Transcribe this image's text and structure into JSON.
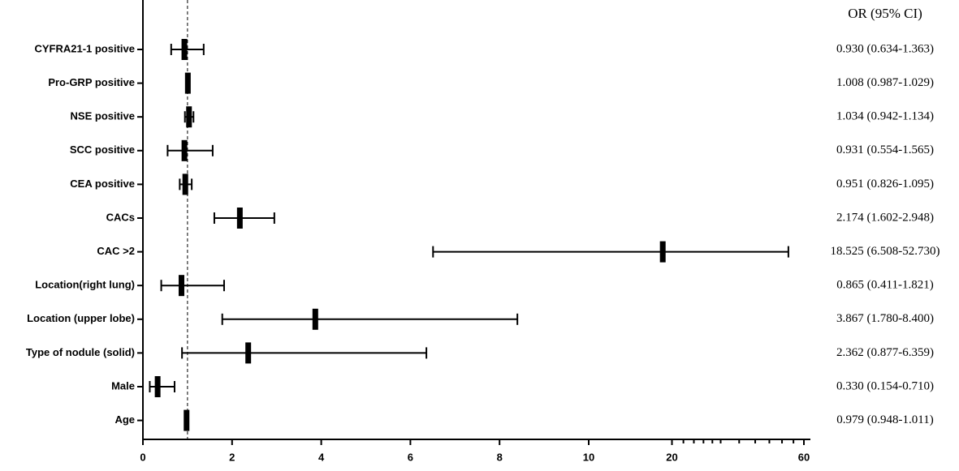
{
  "chart_data": {
    "type": "forest",
    "column_header": "OR (95% CI)",
    "categories": [
      "CYFRA21-1 positive",
      "Pro-GRP positive",
      "NSE positive",
      "SCC positive",
      "CEA positive",
      "CACs",
      "CAC >2",
      "Location(right lung)",
      "Location (upper lobe)",
      "Type of nodule (solid)",
      "Male",
      "Age"
    ],
    "values": [
      0.93,
      1.008,
      1.034,
      0.931,
      0.951,
      2.174,
      18.525,
      0.865,
      3.867,
      2.362,
      0.33,
      0.979
    ],
    "lower": [
      0.634,
      0.987,
      0.942,
      0.554,
      0.826,
      1.602,
      6.508,
      0.411,
      1.78,
      0.877,
      0.154,
      0.948
    ],
    "upper": [
      1.363,
      1.029,
      1.134,
      1.565,
      1.095,
      2.948,
      52.73,
      1.821,
      8.4,
      6.359,
      0.71,
      1.011
    ],
    "value_labels": [
      "0.930 (0.634-1.363)",
      "1.008 (0.987-1.029)",
      "1.034 (0.942-1.134)",
      "0.931 (0.554-1.565)",
      "0.951 (0.826-1.095)",
      "2.174 (1.602-2.948)",
      "18.525 (6.508-52.730)",
      "0.865 (0.411-1.821)",
      "3.867 (1.780-8.400)",
      "2.362 (0.877-6.359)",
      "0.330 (0.154-0.710)",
      "0.979 (0.948-1.011)"
    ],
    "reference_line": 1,
    "xlim": [
      0,
      60
    ],
    "xticks": [
      0,
      2,
      4,
      6,
      8,
      10,
      20,
      60
    ],
    "xminorticks": [
      22,
      24,
      26,
      28,
      30,
      35,
      40,
      45,
      50,
      55
    ],
    "xscale_break": 10,
    "color": "#000000"
  }
}
